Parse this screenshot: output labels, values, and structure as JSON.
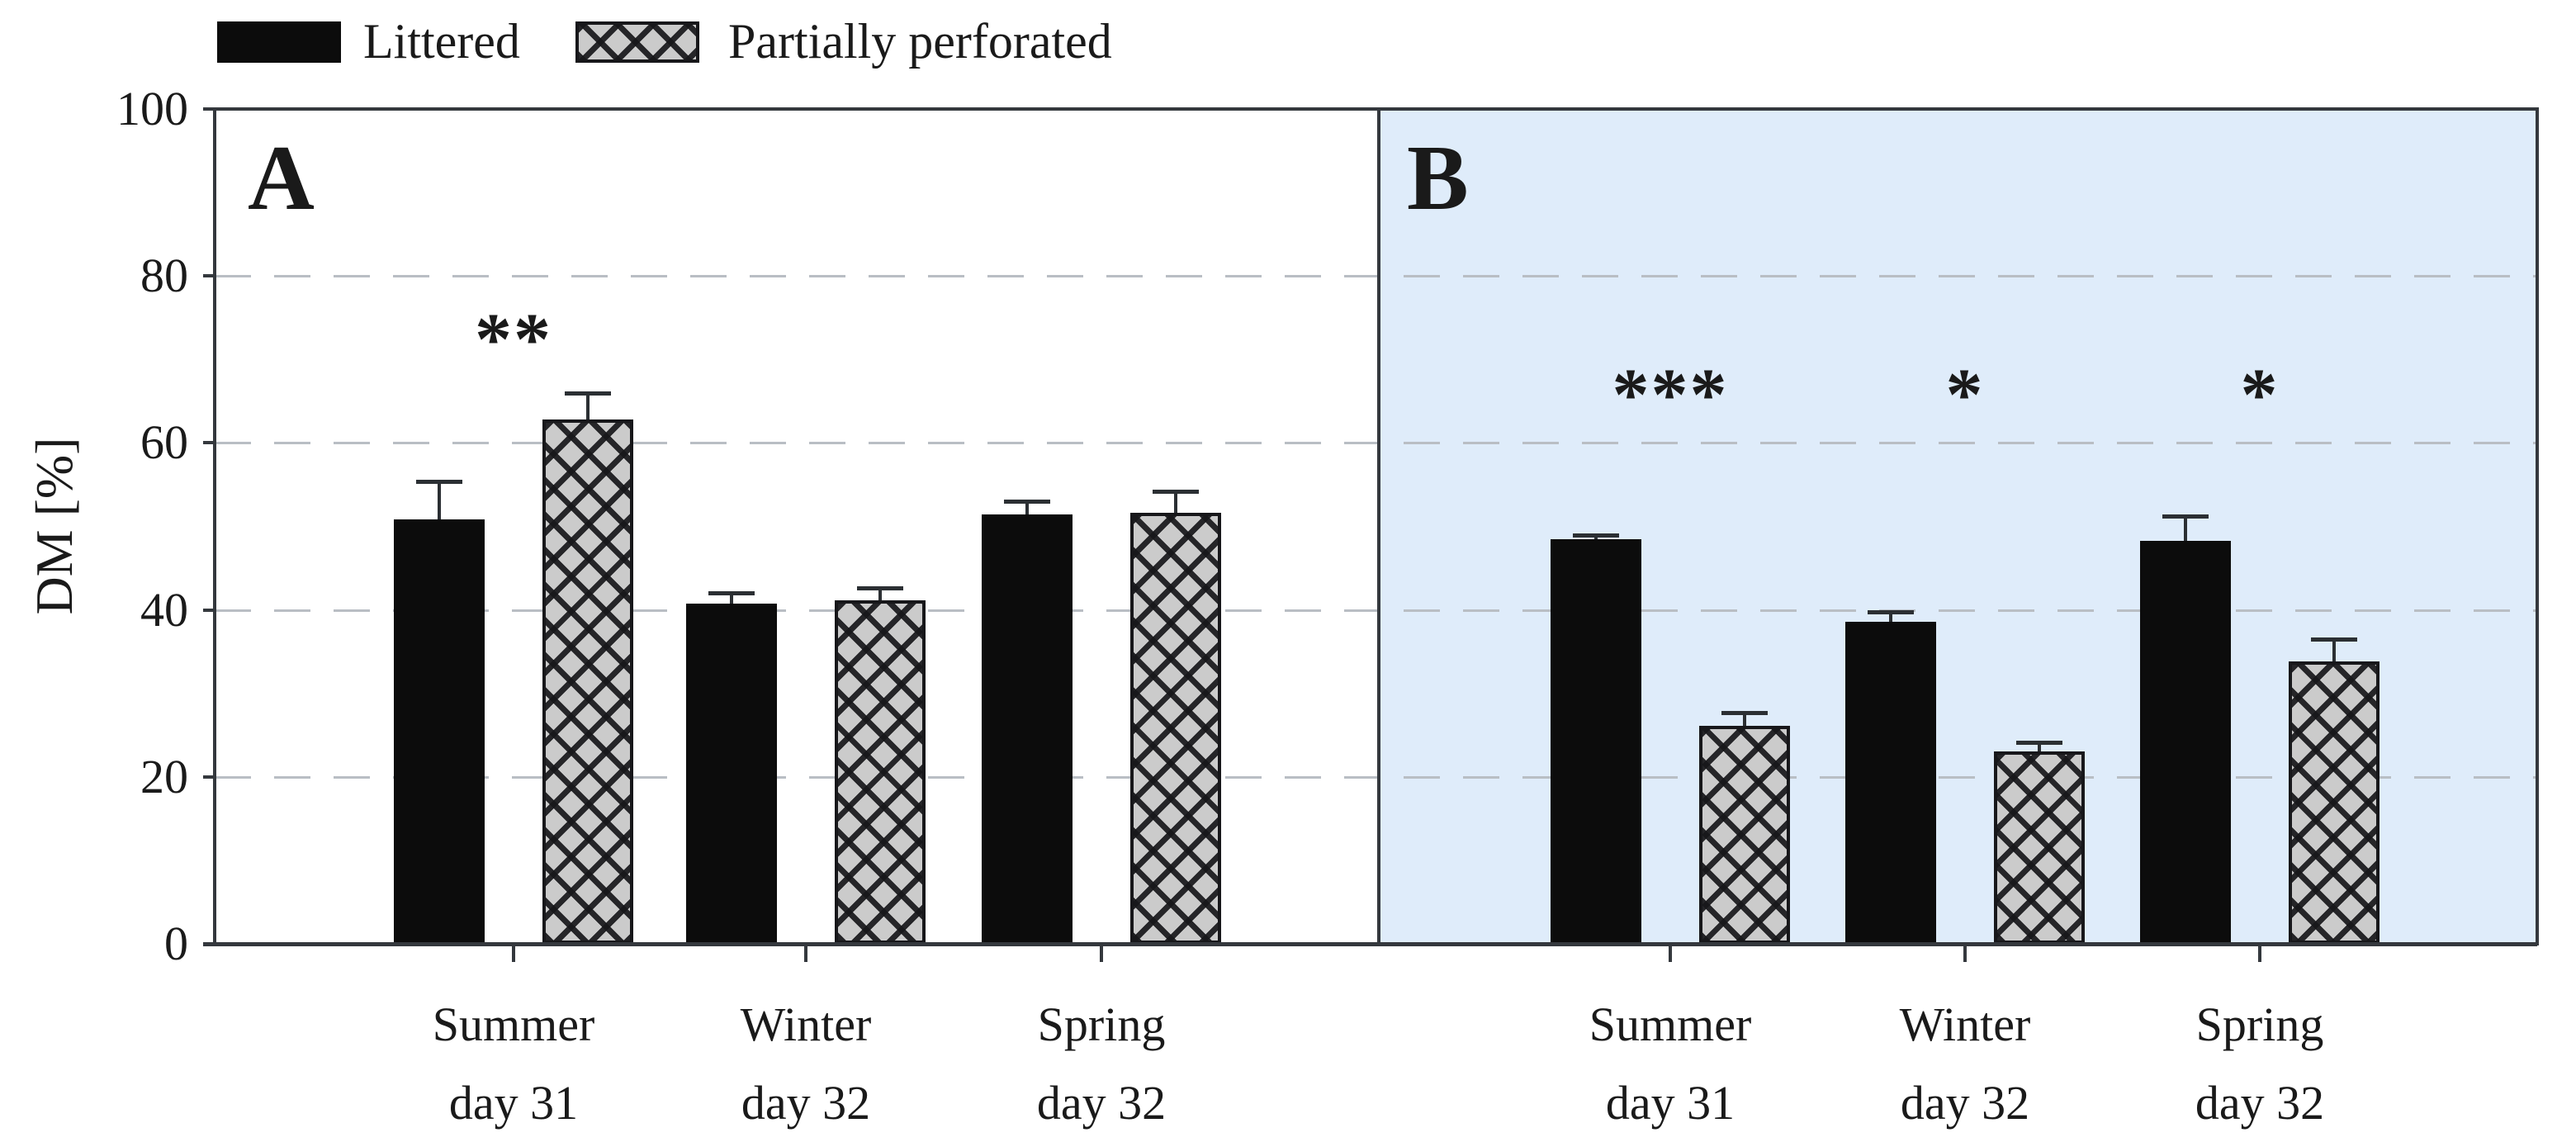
{
  "legend": {
    "items": [
      {
        "label": "Littered",
        "swatch": "solid-black"
      },
      {
        "label": "Partially perforated",
        "swatch": "gray-crosshatch"
      }
    ]
  },
  "y_axis": {
    "label": "DM [%]",
    "min": 0,
    "max": 100,
    "ticks": [
      0,
      20,
      40,
      60,
      80,
      100
    ]
  },
  "x_axis": {
    "category_lines": [
      [
        "Summer",
        "day 31"
      ],
      [
        "Winter",
        "day 32"
      ],
      [
        "Spring",
        "day 32"
      ]
    ]
  },
  "colors": {
    "littered_bar": "#0c0c0c",
    "perforated_fill": "#cbcbcb",
    "perforated_hatch": "#17171a",
    "panel_a_background": "#ffffff",
    "panel_b_background": "#dfecfa",
    "gridline": "#b9bec4",
    "axis": "#34383d",
    "error_bar": "#2b2f33",
    "text": "#1a1a1a"
  },
  "chart_data": [
    {
      "type": "bar",
      "panel_label": "A",
      "categories": [
        "Summer day 31",
        "Winter day 32",
        "Spring day 32"
      ],
      "series": [
        {
          "name": "Littered",
          "values": [
            50.8,
            40.8,
            51.4
          ],
          "errors_upper": [
            4.6,
            1.2,
            1.6
          ]
        },
        {
          "name": "Partially perforated",
          "values": [
            62.8,
            41.1,
            51.6
          ],
          "errors_upper": [
            3.2,
            1.5,
            2.6
          ]
        }
      ],
      "significance_per_category": [
        "**",
        "",
        ""
      ],
      "ylabel": "DM [%]",
      "ylim": [
        0,
        100
      ],
      "yticks": [
        0,
        20,
        40,
        60,
        80,
        100
      ],
      "grid": "horizontal-dashed",
      "legend_position": "above-plot-top-left",
      "background": "#ffffff"
    },
    {
      "type": "bar",
      "panel_label": "B",
      "categories": [
        "Summer day 31",
        "Winter day 32",
        "Spring day 32"
      ],
      "series": [
        {
          "name": "Littered",
          "values": [
            48.5,
            38.6,
            48.3
          ],
          "errors_upper": [
            0.5,
            1.2,
            2.9
          ]
        },
        {
          "name": "Partially perforated",
          "values": [
            26.1,
            23.0,
            33.8
          ],
          "errors_upper": [
            1.6,
            1.1,
            2.7
          ]
        }
      ],
      "significance_per_category": [
        "***",
        "*",
        "*"
      ],
      "ylabel": "DM [%]",
      "ylim": [
        0,
        100
      ],
      "yticks": [
        0,
        20,
        40,
        60,
        80,
        100
      ],
      "grid": "horizontal-dashed",
      "background": "#dfecfa"
    }
  ]
}
